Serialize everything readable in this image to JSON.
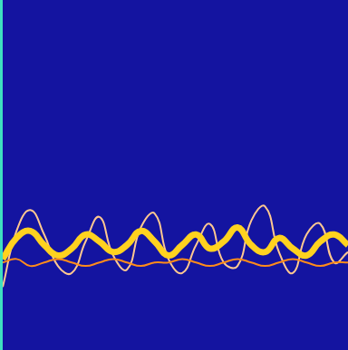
{
  "chart_data": {
    "type": "line",
    "x": [
      0,
      4,
      8,
      12,
      16,
      20,
      24,
      28,
      32,
      36,
      40,
      44,
      48,
      52,
      56,
      60,
      64,
      68,
      72,
      76,
      80,
      84,
      88,
      92,
      96,
      100
    ],
    "xlim": [
      0,
      100
    ],
    "ylim": [
      0,
      100
    ],
    "grid": false,
    "tick_labels": false,
    "series": [
      {
        "color": "#ff8c1a",
        "marker": "none",
        "line_style": "solid",
        "values": [
          25,
          26,
          24,
          25,
          26,
          25,
          24,
          25,
          26,
          25,
          24,
          25,
          25,
          26,
          25,
          24,
          25,
          26,
          25,
          24,
          25,
          26,
          25,
          24,
          25,
          25
        ]
      },
      {
        "color": "#ffd21f",
        "marker": "none",
        "line_style": "solid",
        "values": [
          26,
          32,
          34,
          30,
          27,
          29,
          33,
          31,
          28,
          30,
          34,
          31,
          27,
          30,
          33,
          29,
          31,
          35,
          30,
          28,
          32,
          29,
          27,
          31,
          33,
          30
        ]
      },
      {
        "color": "#ffc890",
        "marker": "none",
        "line_style": "solid",
        "values": [
          18,
          34,
          40,
          33,
          24,
          22,
          31,
          38,
          27,
          23,
          35,
          39,
          26,
          22,
          30,
          36,
          25,
          24,
          37,
          41,
          28,
          22,
          33,
          36,
          25,
          28
        ]
      }
    ]
  }
}
